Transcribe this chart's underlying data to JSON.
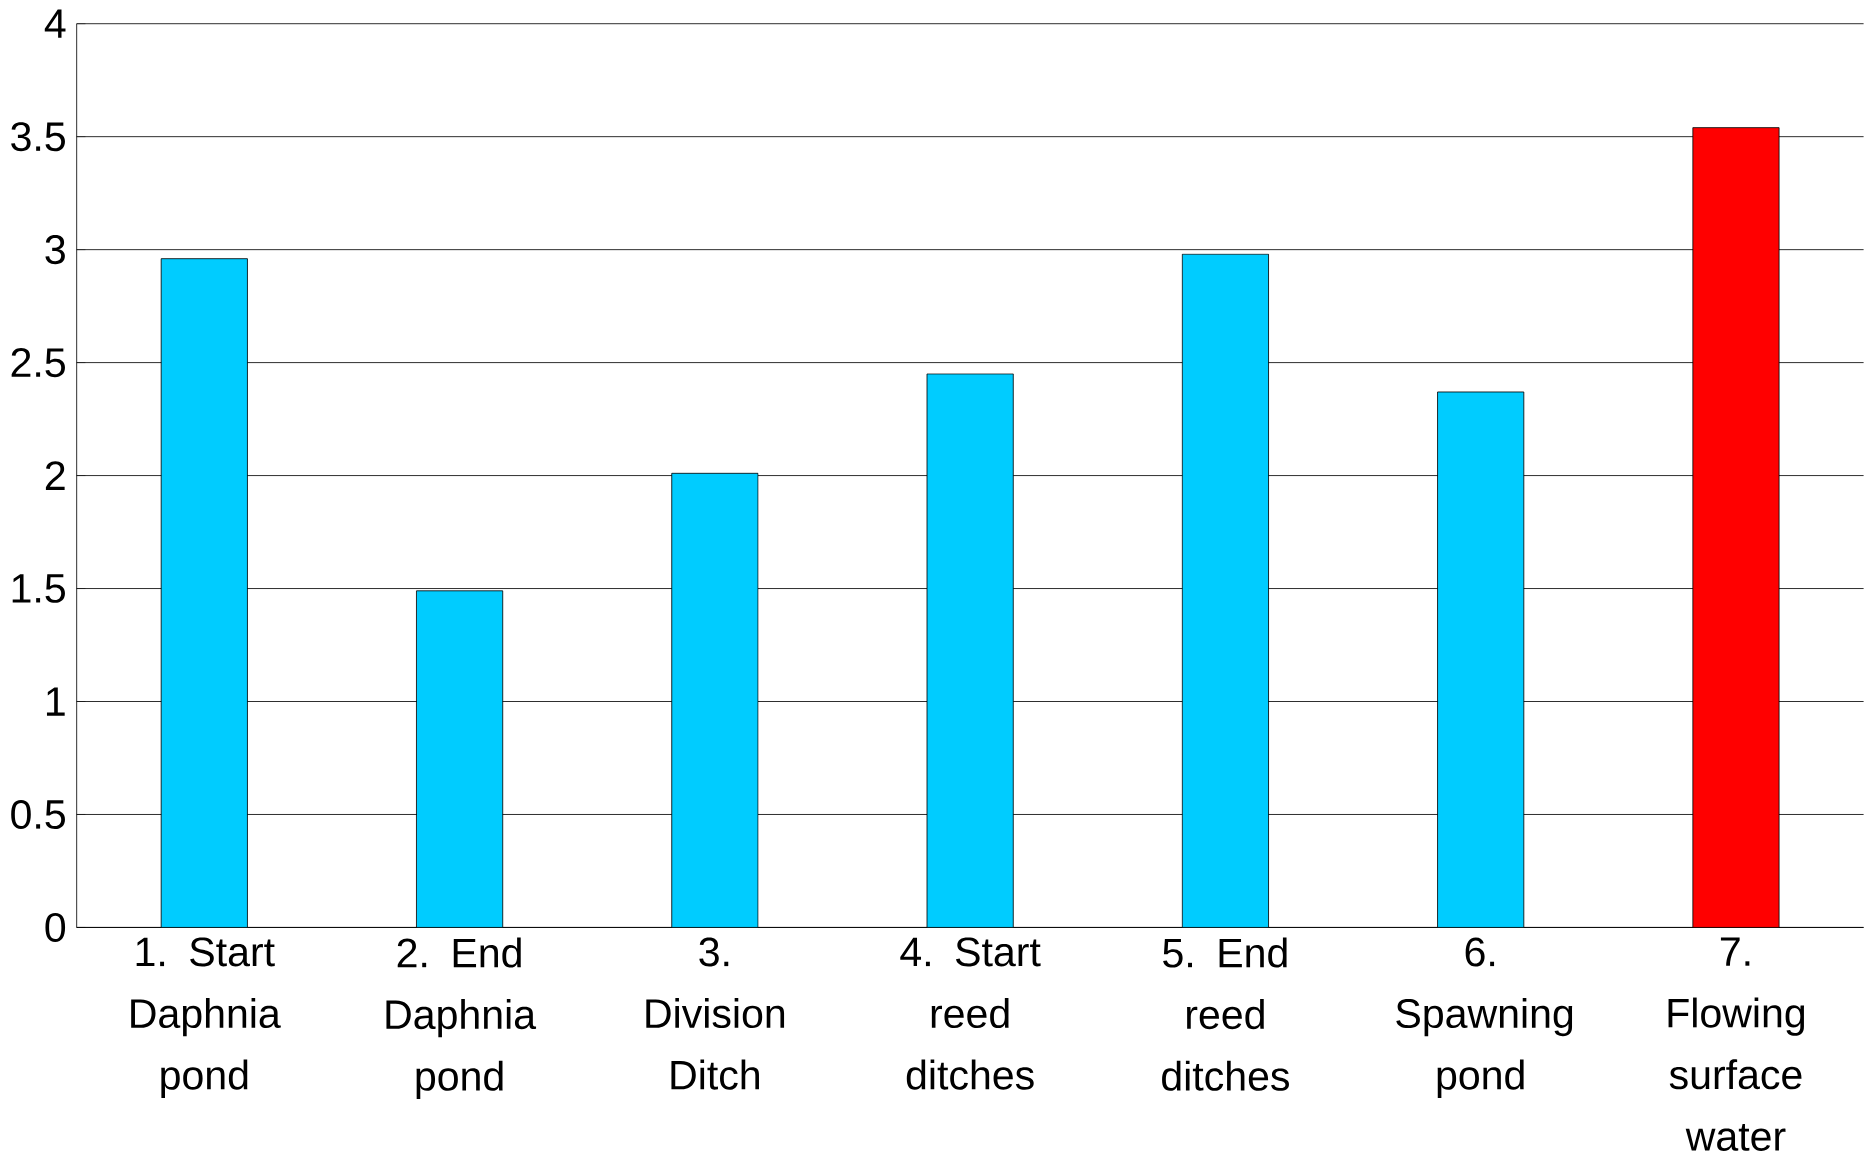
{
  "chart_data": {
    "type": "bar",
    "categories": [
      "1. Start Daphnia pond",
      "2. End Daphnia pond",
      "3. Division Ditch",
      "4. Start reed ditches",
      "5. End reed ditches",
      "6. Spawning pond",
      "7. Flowing surface water"
    ],
    "values": [
      2.96,
      1.49,
      2.01,
      2.45,
      2.98,
      2.37,
      3.54
    ],
    "colors": [
      "#00ccff",
      "#00ccff",
      "#00ccff",
      "#00ccff",
      "#00ccff",
      "#00ccff",
      "#ff0000"
    ],
    "ylim": [
      0,
      4
    ],
    "yticks": [
      0,
      0.5,
      1,
      1.5,
      2,
      2.5,
      3,
      3.5,
      4
    ],
    "grid": "y"
  }
}
